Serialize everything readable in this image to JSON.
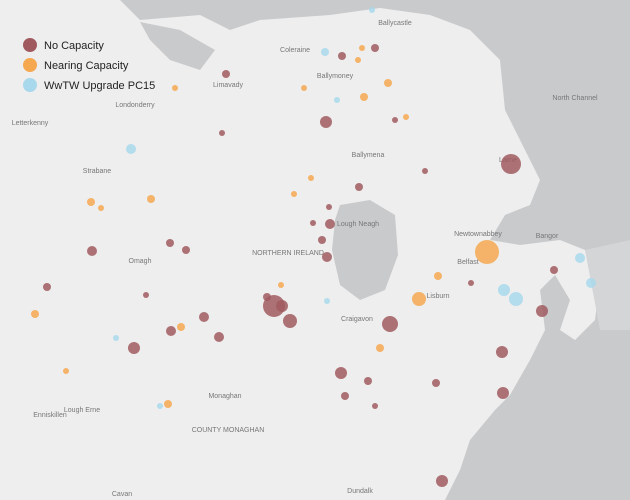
{
  "legend": {
    "items": [
      {
        "label": "No Capacity",
        "color": "#a05a5f"
      },
      {
        "label": "Nearing Capacity",
        "color": "#f5a850"
      },
      {
        "label": "WwTW Upgrade PC15",
        "color": "#a8d8ec"
      }
    ]
  },
  "places": [
    "Ballycastle",
    "Coleraine",
    "Limavady",
    "Londonderry",
    "Letterkenny",
    "Ballymoney",
    "Ballymena",
    "Larne",
    "North Channel",
    "Strabane",
    "Newtownabbey",
    "Bangor",
    "Belfast",
    "NORTHERN IRELAND",
    "Lough Neagh",
    "Omagh",
    "Lisburn",
    "Craigavon",
    "Enniskillen",
    "Monaghan",
    "COUNTY MONAGHAN",
    "Lough Erne",
    "Cavan",
    "Dundalk"
  ]
}
